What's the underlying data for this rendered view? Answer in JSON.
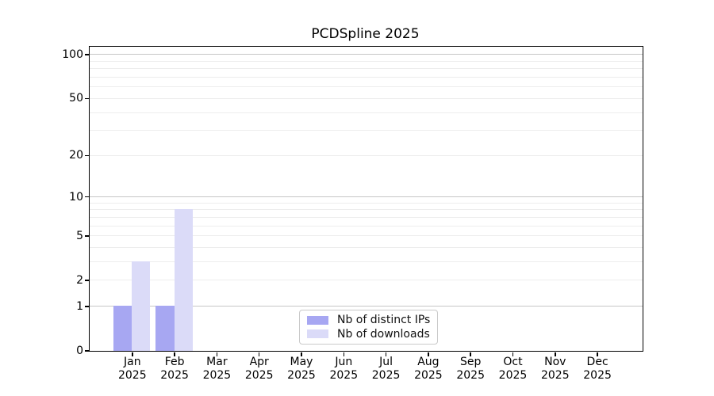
{
  "chart_data": {
    "type": "bar",
    "title": "PCDSpline 2025",
    "categories": [
      "Jan",
      "Feb",
      "Mar",
      "Apr",
      "May",
      "Jun",
      "Jul",
      "Aug",
      "Sep",
      "Oct",
      "Nov",
      "Dec"
    ],
    "x_year_line": "2025",
    "series": [
      {
        "name": "Nb of distinct IPs",
        "color": "#a7a7f2",
        "values": [
          1,
          1,
          0,
          0,
          0,
          0,
          0,
          0,
          0,
          0,
          0,
          0
        ]
      },
      {
        "name": "Nb of downloads",
        "color": "#dbdbf8",
        "values": [
          3,
          8,
          0,
          0,
          0,
          0,
          0,
          0,
          0,
          0,
          0,
          0
        ]
      }
    ],
    "y_axis": {
      "scale": "log1p",
      "labeled_ticks": [
        0,
        1,
        2,
        5,
        10,
        20,
        50,
        100
      ],
      "decade_gridlines": [
        1,
        10,
        100
      ],
      "minor_gridlines": [
        2,
        3,
        4,
        5,
        6,
        7,
        8,
        9,
        20,
        30,
        40,
        50,
        60,
        70,
        80,
        90
      ],
      "ylim": [
        0,
        113
      ]
    },
    "legend": {
      "entries": [
        "Nb of distinct IPs",
        "Nb of downloads"
      ]
    },
    "grid": true,
    "legend_position": "lower center"
  }
}
